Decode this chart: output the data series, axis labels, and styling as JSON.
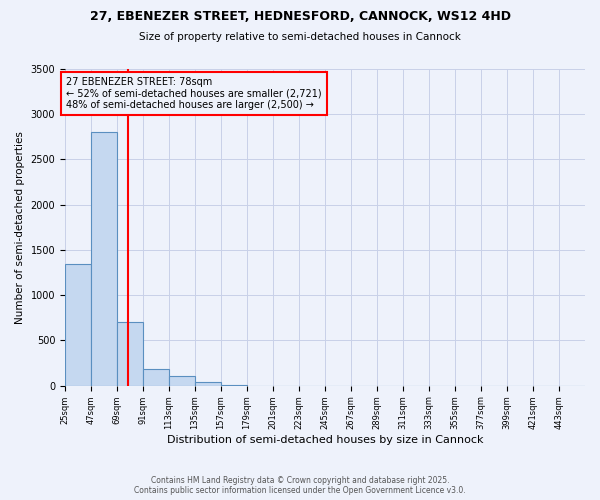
{
  "title_line1": "27, EBENEZER STREET, HEDNESFORD, CANNOCK, WS12 4HD",
  "title_line2": "Size of property relative to semi-detached houses in Cannock",
  "xlabel": "Distribution of semi-detached houses by size in Cannock",
  "ylabel": "Number of semi-detached properties",
  "bin_edges": [
    25,
    47,
    69,
    91,
    113,
    135,
    157,
    179,
    201,
    223,
    245,
    267,
    289,
    311,
    333,
    355,
    377,
    399,
    421,
    443,
    465
  ],
  "bar_heights": [
    1350,
    2800,
    700,
    190,
    105,
    40,
    10,
    0,
    0,
    0,
    0,
    0,
    0,
    0,
    0,
    0,
    0,
    0,
    0,
    0
  ],
  "bar_color": "#c5d8f0",
  "bar_edgecolor": "#5a8fc0",
  "property_size": 78,
  "property_line_color": "red",
  "annotation_text": "27 EBENEZER STREET: 78sqm\n← 52% of semi-detached houses are smaller (2,721)\n48% of semi-detached houses are larger (2,500) →",
  "annotation_box_color": "red",
  "ylim": [
    0,
    3500
  ],
  "yticks": [
    0,
    500,
    1000,
    1500,
    2000,
    2500,
    3000,
    3500
  ],
  "footer_line1": "Contains HM Land Registry data © Crown copyright and database right 2025.",
  "footer_line2": "Contains public sector information licensed under the Open Government Licence v3.0.",
  "background_color": "#eef2fb",
  "grid_color": "#c8d0e8"
}
